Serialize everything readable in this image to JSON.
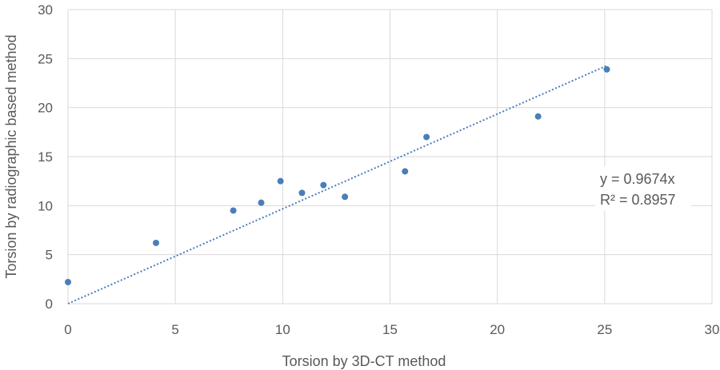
{
  "chart_data": {
    "type": "scatter",
    "xlabel": "Torsion by 3D-CT method",
    "ylabel": "Torsion by radiographic based method",
    "xlim": [
      0,
      30
    ],
    "ylim": [
      0,
      30
    ],
    "x_ticks": [
      "0",
      "5",
      "10",
      "15",
      "20",
      "25",
      "30"
    ],
    "y_ticks": [
      "0",
      "5",
      "10",
      "15",
      "20",
      "25",
      "30"
    ],
    "grid": true,
    "points": [
      {
        "x": 0,
        "y": 2.2
      },
      {
        "x": 4.1,
        "y": 6.2
      },
      {
        "x": 7.7,
        "y": 9.5
      },
      {
        "x": 9.0,
        "y": 10.3
      },
      {
        "x": 9.9,
        "y": 12.5
      },
      {
        "x": 10.9,
        "y": 11.3
      },
      {
        "x": 11.9,
        "y": 12.1
      },
      {
        "x": 12.9,
        "y": 10.9
      },
      {
        "x": 15.7,
        "y": 13.5
      },
      {
        "x": 16.7,
        "y": 17.0
      },
      {
        "x": 21.9,
        "y": 19.1
      },
      {
        "x": 25.1,
        "y": 23.9
      }
    ],
    "trendline": {
      "type": "linear-through-origin",
      "slope": 0.9674,
      "x_range": [
        0,
        25.1
      ]
    },
    "annotations": [
      "y = 0.9674x",
      "R² = 0.8957"
    ],
    "colors": {
      "marker": "#4a7ebb",
      "trendline": "#4a7ebb",
      "grid": "#d9d9d9",
      "text": "#595959"
    }
  }
}
